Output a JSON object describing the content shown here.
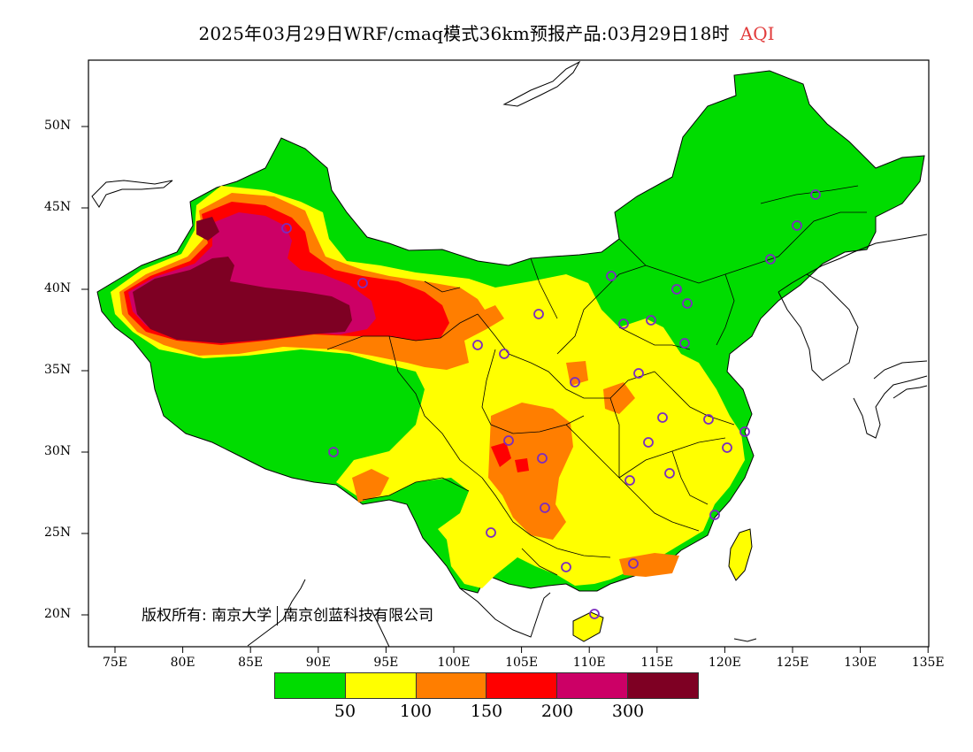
{
  "title": {
    "main": "2025年03月29日WRF/cmaq模式36km预报产品:03月29日18时",
    "variable": "AQI",
    "variable_color": "#e23c3c"
  },
  "copyright": {
    "prefix": "版权所有:",
    "org1": "南京大学",
    "org2": "南京创蓝科技有限公司"
  },
  "axes": {
    "lat_labels": [
      "50N",
      "45N",
      "40N",
      "35N",
      "30N",
      "25N",
      "20N"
    ],
    "lon_labels": [
      "75E",
      "80E",
      "85E",
      "90E",
      "95E",
      "100E",
      "105E",
      "110E",
      "115E",
      "120E",
      "125E",
      "130E",
      "135E"
    ]
  },
  "legend": {
    "colors": [
      "#00dc00",
      "#ffff00",
      "#ff7e00",
      "#ff0000",
      "#cc0066",
      "#7e0023"
    ],
    "ticks": [
      "50",
      "100",
      "150",
      "200",
      "300"
    ]
  },
  "colors": {
    "good": "#00dc00",
    "moderate": "#ffff00",
    "usg": "#ff7e00",
    "unhealthy": "#ff0000",
    "very_unhealthy": "#cc0066",
    "hazardous": "#7e0023",
    "station_marker": "#7b2cbf"
  }
}
